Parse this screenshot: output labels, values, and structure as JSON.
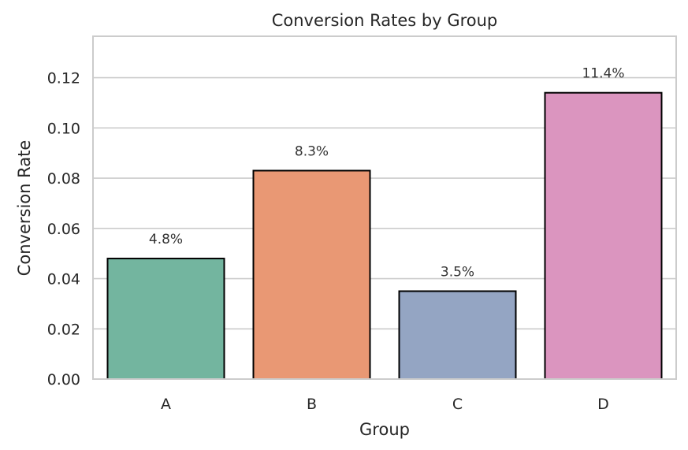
{
  "chart_data": {
    "type": "bar",
    "title": "Conversion Rates by Group",
    "xlabel": "Group",
    "ylabel": "Conversion Rate",
    "categories": [
      "A",
      "B",
      "C",
      "D"
    ],
    "values": [
      0.048,
      0.083,
      0.035,
      0.114
    ],
    "data_labels": [
      "4.8%",
      "8.3%",
      "3.5%",
      "11.4%"
    ],
    "colors": [
      "#73b59f",
      "#e99874",
      "#94a5c3",
      "#db95bf"
    ],
    "ylim": [
      0,
      0.1365
    ],
    "yticks": [
      0.0,
      0.02,
      0.04,
      0.06,
      0.08,
      0.1,
      0.12
    ],
    "ytick_labels": [
      "0.00",
      "0.02",
      "0.04",
      "0.06",
      "0.08",
      "0.10",
      "0.12"
    ],
    "grid": "horizontal",
    "legend": "none"
  }
}
